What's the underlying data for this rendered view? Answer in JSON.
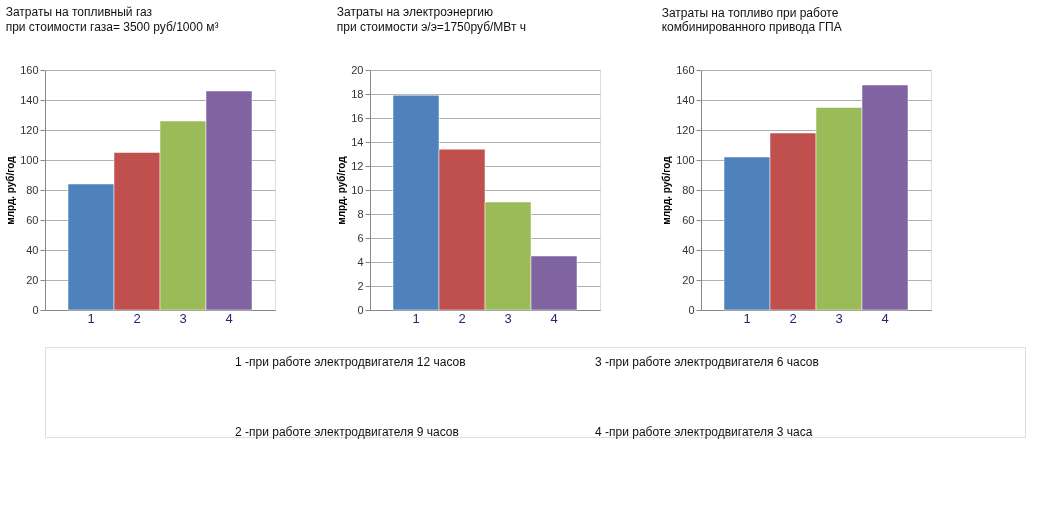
{
  "chart_data": [
    {
      "type": "bar",
      "title": "Затраты на топливный газ",
      "subtitle": "при стоимости газа= 3500  руб/1000 м³",
      "ylabel": "млрд. руб/год",
      "categories": [
        "1",
        "2",
        "3",
        "4"
      ],
      "values": [
        84,
        105,
        126,
        146
      ],
      "colors": [
        "#4f81bd",
        "#c0504d",
        "#9bbb59",
        "#8064a2"
      ],
      "ylim": [
        0,
        160
      ],
      "yticks": [
        0,
        20,
        40,
        60,
        80,
        100,
        120,
        140,
        160
      ],
      "grid": "y",
      "legend": false
    },
    {
      "type": "bar",
      "title": "Затраты на электроэнергию",
      "subtitle": "при стоимости  э/э=1750руб/МВт ч",
      "ylabel": "млрд. руб/год",
      "categories": [
        "1",
        "2",
        "3",
        "4"
      ],
      "values": [
        17.9,
        13.4,
        9,
        4.5
      ],
      "colors": [
        "#4f81bd",
        "#c0504d",
        "#9bbb59",
        "#8064a2"
      ],
      "ylim": [
        0,
        20
      ],
      "yticks": [
        0,
        2,
        4,
        6,
        8,
        10,
        12,
        14,
        16,
        18,
        20
      ],
      "grid": "y",
      "legend": false
    },
    {
      "type": "bar",
      "title": "Затраты на топливо при работе комбинированного привода ГПА",
      "ylabel": "млрд. руб/год",
      "categories": [
        "1",
        "2",
        "3",
        "4"
      ],
      "values": [
        102,
        118,
        135,
        150
      ],
      "colors": [
        "#4f81bd",
        "#c0504d",
        "#9bbb59",
        "#8064a2"
      ],
      "ylim": [
        0,
        160
      ],
      "yticks": [
        0,
        20,
        40,
        60,
        80,
        100,
        120,
        140,
        160
      ],
      "grid": "y",
      "legend": false
    },
    {
      "type": "other",
      "annotations": [
        "1  -при работе электродвигателя 12 часов",
        "3 -при работе электродвигателя 6 часов",
        "2  -при работе электродвигателя 9 часов",
        "4 -при работе электродвигателя 3 часа"
      ]
    }
  ]
}
